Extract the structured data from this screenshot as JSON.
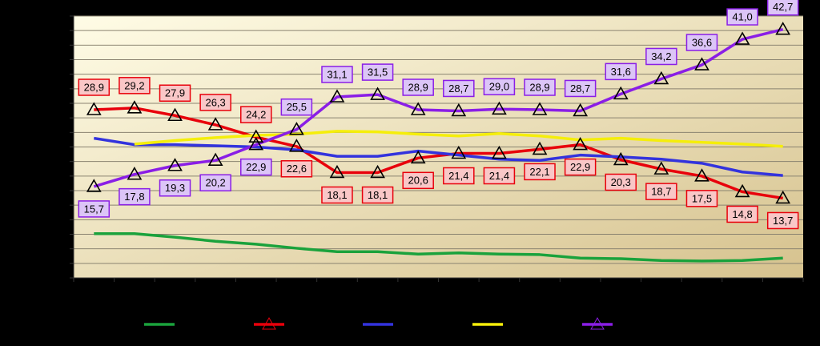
{
  "chart_data": {
    "type": "line",
    "categories": [
      null,
      null,
      null,
      null,
      null,
      null,
      null,
      null,
      null,
      null,
      null,
      null,
      null,
      null,
      null,
      null,
      null,
      null
    ],
    "ylim": [
      0,
      45
    ],
    "yticks": [
      0,
      2.5,
      5,
      7.5,
      10,
      12.5,
      15,
      17.5,
      20,
      22.5,
      25,
      27.5,
      30,
      32.5,
      35,
      37.5,
      40,
      42.5,
      45
    ],
    "grid": true,
    "series": [
      {
        "color": "#1aa23c",
        "values": [
          7.6,
          7.6,
          7.0,
          6.3,
          5.8,
          5.1,
          4.5,
          4.5,
          4.1,
          4.3,
          4.1,
          4.0,
          3.4,
          3.3,
          3.0,
          2.9,
          3.0,
          3.4
        ]
      },
      {
        "color": "#e8000b",
        "marker": "triangle",
        "values": [
          28.9,
          29.2,
          27.9,
          26.3,
          24.2,
          22.6,
          18.1,
          18.1,
          20.6,
          21.4,
          21.4,
          22.1,
          22.9,
          20.3,
          18.7,
          17.5,
          14.8,
          13.7
        ],
        "value_labels": [
          "28,9",
          "29,2",
          "27,9",
          "26,3",
          "24,2",
          "22,6",
          "18,1",
          "18,1",
          "20,6",
          "21,4",
          "21,4",
          "22,1",
          "22,9",
          "20,3",
          "18,7",
          "17,5",
          "14,8",
          "13,7"
        ]
      },
      {
        "color": "#3333dd",
        "values": [
          24.0,
          22.9,
          22.9,
          22.7,
          22.5,
          22.0,
          20.9,
          20.9,
          21.8,
          21.1,
          20.4,
          20.2,
          21.1,
          20.8,
          20.4,
          19.7,
          18.2,
          17.6
        ]
      },
      {
        "color": "#f5ee0a",
        "values": [
          null,
          23.0,
          23.6,
          24.1,
          24.5,
          24.7,
          25.2,
          25.1,
          24.7,
          24.4,
          24.8,
          24.4,
          23.7,
          24.0,
          23.6,
          23.3,
          23.0,
          22.6
        ]
      },
      {
        "color": "#8a1ee6",
        "marker": "triangle",
        "values": [
          15.7,
          17.8,
          19.3,
          20.2,
          22.9,
          25.5,
          31.1,
          31.5,
          28.9,
          28.7,
          29.0,
          28.9,
          28.7,
          31.6,
          34.2,
          36.6,
          41.0,
          42.7
        ],
        "value_labels": [
          "15,7",
          "17,8",
          "19,3",
          "20,2",
          "22,9",
          "25,5",
          "31,1",
          "31,5",
          "28,9",
          "28,7",
          "29,0",
          "28,9",
          "28,7",
          "31,6",
          "34,2",
          "36,6",
          "41,0",
          "42,7"
        ]
      }
    ]
  }
}
